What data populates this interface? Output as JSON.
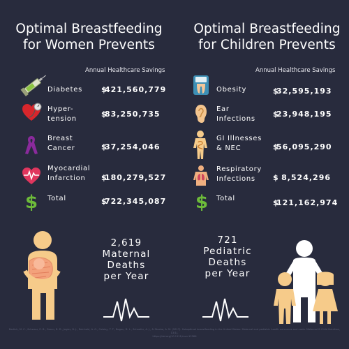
{
  "left": {
    "title_line1": "Optimal Breastfeeding",
    "title_line2": "for Women Prevents",
    "column_header": "Annual Healthcare Savings",
    "rows": [
      {
        "label_line1": "Diabetes",
        "label_line2": "",
        "currency": "$",
        "amount": "421,560,779",
        "icon": "syringe-icon"
      },
      {
        "label_line1": "Hyper-",
        "label_line2": "tension",
        "currency": "$",
        "amount": "83,250,735",
        "icon": "heart-gauge-icon"
      },
      {
        "label_line1": "Breast",
        "label_line2": "Cancer",
        "currency": "$",
        "amount": "37,254,046",
        "icon": "ribbon-icon"
      },
      {
        "label_line1": "Myocardial",
        "label_line2": "Infarction",
        "currency": "$",
        "amount": "180,279,527",
        "icon": "heart-pulse-icon"
      },
      {
        "label_line1": "Total",
        "label_line2": "",
        "currency": "$",
        "amount": "722,345,087",
        "icon": "dollar-icon"
      }
    ],
    "deaths_count": "2,619",
    "deaths_line1": "Maternal",
    "deaths_line2": "Deaths",
    "deaths_line3": "per Year"
  },
  "right": {
    "title_line1": "Optimal Breastfeeding",
    "title_line2": "for Children Prevents",
    "column_header": "Annual Healthcare Savings",
    "rows": [
      {
        "label_line1": "Obesity",
        "label_line2": "",
        "currency": "$",
        "amount": "32,595,193",
        "icon": "scale-icon"
      },
      {
        "label_line1": "Ear",
        "label_line2": "Infections",
        "currency": "$",
        "amount": "23,948,195",
        "icon": "ear-icon"
      },
      {
        "label_line1": "GI Illnesses",
        "label_line2": "& NEC",
        "currency": "$",
        "amount": "56,095,290",
        "icon": "gi-body-icon"
      },
      {
        "label_line1": "Respiratory",
        "label_line2": "Infections",
        "currency": "$",
        "amount": "8,524,296",
        "icon": "lungs-body-icon"
      },
      {
        "label_line1": "Total",
        "label_line2": "",
        "currency": "$",
        "amount": "121,162,974",
        "icon": "dollar-icon"
      }
    ],
    "deaths_count": "721",
    "deaths_line1": "Pediatric",
    "deaths_line2": "Deaths",
    "deaths_line3": "per Year"
  },
  "citation_line1": "Bartick, M. C., Schwarz, E. B., Green, B. D., Jegier, B. J., Reinhold, A. G., Colaizy, T. T., Bogen, D. L., Schaefer, A. J., & Stuebe, A. M. (2017). Suboptimal breastfeeding in the United States: Maternal and pediatric health outcomes and costs. Maternal & Child Nutrition, 13(1),",
  "citation_line2": "https://doi.org/10.1111/mcn.12366",
  "colors": {
    "background": "#282b3d",
    "accent_green": "#6dbb3a",
    "figure_peach": "#f6cb8a",
    "figure_white": "#ffffff"
  }
}
